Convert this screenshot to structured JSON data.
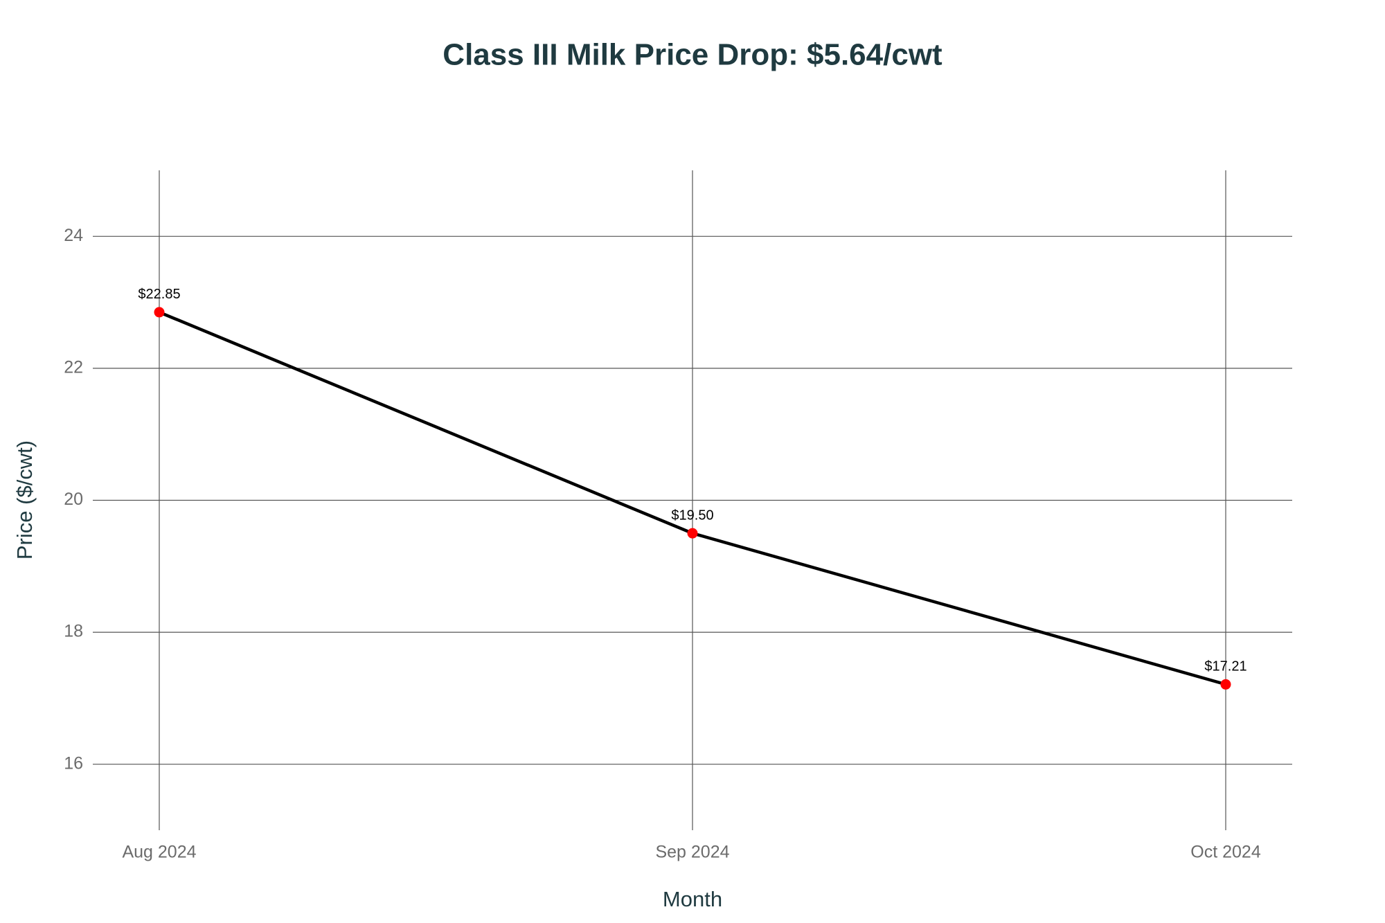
{
  "chart_data": {
    "type": "line",
    "title": "Class III Milk Price Drop: $5.64/cwt",
    "x_label": "Month",
    "y_label": "Price ($/cwt)",
    "categories": [
      "Aug 2024",
      "Sep 2024",
      "Oct 2024"
    ],
    "values": [
      22.85,
      19.5,
      17.21
    ],
    "value_labels": [
      "$22.85",
      "$19.50",
      "$17.21"
    ],
    "color": "#000000",
    "marker_color": "#ff0000",
    "ylim": [
      15,
      25
    ],
    "yticks": [
      16,
      18,
      20,
      22,
      24
    ],
    "grid": true
  }
}
